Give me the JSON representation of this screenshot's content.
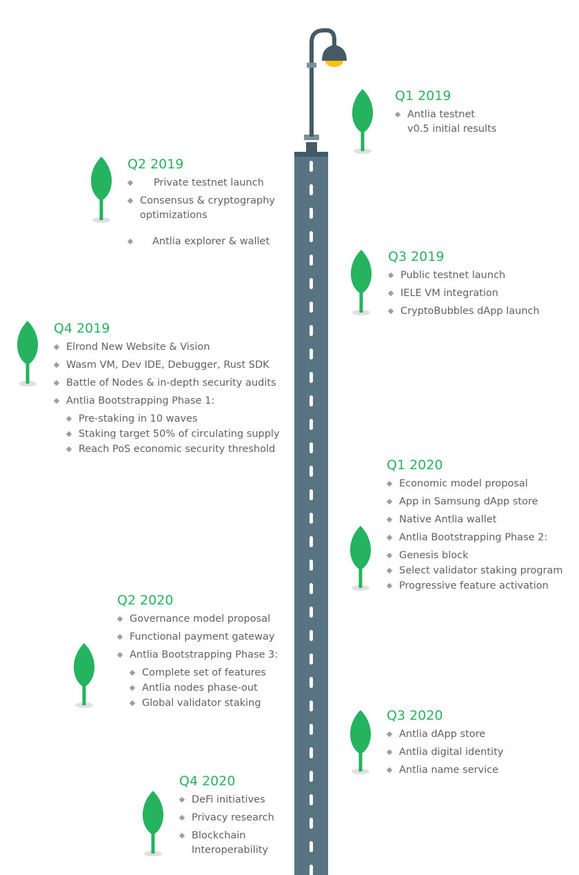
{
  "colors": {
    "road": "#587482",
    "road_top": "#3f5b68",
    "lane": "#ffffff",
    "lamp_post": "#455a64",
    "lamp_light": "#ffc107",
    "leaf": "#25b360",
    "shadow": "#e0e0e0",
    "title": "#2bb05e",
    "text": "#616161",
    "bullet": "#9e9e9e"
  },
  "icons": {
    "lamp": "street-lamp-icon",
    "tree": "tree-icon",
    "bullet": "diamond-bullet-icon"
  },
  "milestones": [
    {
      "id": "q1-2019",
      "title": "Q1 2019",
      "items": [
        "Antlia testnet\nv0.5 initial results"
      ]
    },
    {
      "id": "q2-2019",
      "title": "Q2 2019",
      "items": [
        "Private testnet launch",
        "Consensus & cryptography\noptimizations",
        "Antlia explorer & wallet"
      ]
    },
    {
      "id": "q3-2019",
      "title": "Q3 2019",
      "items": [
        "Public testnet launch",
        "IELE VM integration",
        "CryptoBubbles dApp launch"
      ]
    },
    {
      "id": "q4-2019",
      "title": "Q4 2019",
      "items": [
        "Elrond New Website & Vision",
        "Wasm VM, Dev IDE, Debugger, Rust SDK",
        "Battle of Nodes & in-depth security audits",
        "Antlia Bootstrapping Phase 1:"
      ],
      "subitems": [
        "Pre-staking in 10 waves",
        "Staking target 50% of circulating supply",
        "Reach PoS economic security threshold"
      ]
    },
    {
      "id": "q1-2020",
      "title": "Q1 2020",
      "items": [
        "Economic model proposal",
        "App in Samsung dApp store",
        "Native Antlia wallet",
        "Antlia Bootstrapping Phase 2:",
        "Genesis block",
        "Select validator staking program",
        "Progressive feature activation"
      ]
    },
    {
      "id": "q2-2020",
      "title": "Q2 2020",
      "items": [
        "Governance model proposal",
        "Functional payment gateway",
        "Antlia Bootstrapping Phase 3:"
      ],
      "subitems": [
        "Complete set of features",
        "Antlia nodes phase-out",
        "Global validator staking"
      ]
    },
    {
      "id": "q3-2020",
      "title": "Q3 2020",
      "items": [
        "Antlia dApp store",
        "Antlia digital identity",
        "Antlia name service"
      ]
    },
    {
      "id": "q4-2020",
      "title": "Q4 2020",
      "items": [
        "DeFi initiatives",
        "Privacy research",
        "Blockchain\nInteroperability"
      ]
    }
  ]
}
